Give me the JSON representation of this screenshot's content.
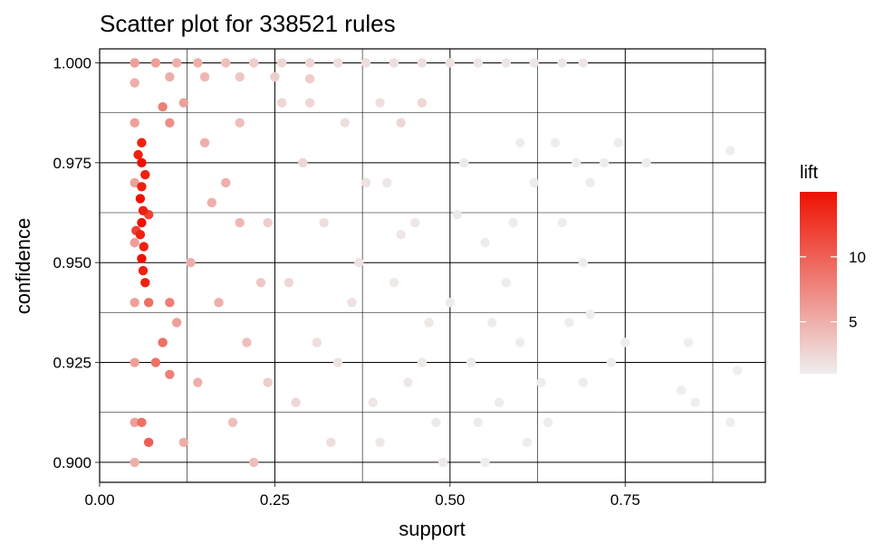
{
  "chart_data": {
    "type": "scatter",
    "title": "Scatter plot for 338521 rules",
    "xlabel": "support",
    "ylabel": "confidence",
    "xlim": [
      0.0,
      0.95
    ],
    "ylim": [
      0.895,
      1.0035
    ],
    "x_ticks": [
      {
        "value": 0.0,
        "label": "0.00"
      },
      {
        "value": 0.25,
        "label": "0.25"
      },
      {
        "value": 0.5,
        "label": "0.50"
      },
      {
        "value": 0.75,
        "label": "0.75"
      }
    ],
    "y_ticks": [
      {
        "value": 0.9,
        "label": "0.900"
      },
      {
        "value": 0.925,
        "label": "0.925"
      },
      {
        "value": 0.95,
        "label": "0.950"
      },
      {
        "value": 0.975,
        "label": "0.975"
      },
      {
        "value": 1.0,
        "label": "1.000"
      }
    ],
    "grid": true,
    "color_by": "lift",
    "legend": {
      "title": "lift",
      "placement": "right",
      "low_color": "#eeeeee",
      "high_color": "#ee1100",
      "range": [
        1,
        15
      ],
      "ticks": [
        {
          "value": 5,
          "label": "5"
        },
        {
          "value": 10,
          "label": "10"
        }
      ]
    },
    "series": [
      {
        "points": [
          [
            0.05,
            1.0,
            6
          ],
          [
            0.08,
            1.0,
            6
          ],
          [
            0.11,
            1.0,
            5
          ],
          [
            0.14,
            1.0,
            5
          ],
          [
            0.18,
            1.0,
            4
          ],
          [
            0.22,
            1.0,
            3
          ],
          [
            0.26,
            1.0,
            2.5
          ],
          [
            0.3,
            1.0,
            2.5
          ],
          [
            0.34,
            1.0,
            2
          ],
          [
            0.38,
            1.0,
            2
          ],
          [
            0.42,
            1.0,
            2
          ],
          [
            0.46,
            1.0,
            2
          ],
          [
            0.5,
            1.0,
            1.8
          ],
          [
            0.54,
            1.0,
            1.6
          ],
          [
            0.58,
            1.0,
            1.5
          ],
          [
            0.62,
            1.0,
            1.5
          ],
          [
            0.66,
            1.0,
            1.5
          ],
          [
            0.69,
            1.0,
            1.5
          ],
          [
            0.1,
            0.9965,
            5
          ],
          [
            0.15,
            0.9965,
            4.5
          ],
          [
            0.2,
            0.9965,
            3.5
          ],
          [
            0.25,
            0.9965,
            3
          ],
          [
            0.3,
            0.996,
            3
          ],
          [
            0.06,
            0.98,
            14
          ],
          [
            0.055,
            0.977,
            14
          ],
          [
            0.06,
            0.975,
            15
          ],
          [
            0.065,
            0.972,
            14
          ],
          [
            0.06,
            0.969,
            14
          ],
          [
            0.058,
            0.966,
            15
          ],
          [
            0.062,
            0.963,
            14
          ],
          [
            0.06,
            0.96,
            15
          ],
          [
            0.058,
            0.957,
            14
          ],
          [
            0.063,
            0.954,
            14
          ],
          [
            0.06,
            0.951,
            15
          ],
          [
            0.062,
            0.948,
            14
          ],
          [
            0.065,
            0.945,
            14
          ],
          [
            0.07,
            0.962,
            12
          ],
          [
            0.052,
            0.958,
            12
          ],
          [
            0.09,
            0.989,
            8
          ],
          [
            0.1,
            0.985,
            7
          ],
          [
            0.07,
            0.94,
            9
          ],
          [
            0.1,
            0.94,
            8
          ],
          [
            0.08,
            0.925,
            9
          ],
          [
            0.09,
            0.93,
            9
          ],
          [
            0.06,
            0.91,
            9
          ],
          [
            0.07,
            0.905,
            10
          ],
          [
            0.1,
            0.922,
            8
          ],
          [
            0.05,
            0.995,
            5
          ],
          [
            0.05,
            0.985,
            6
          ],
          [
            0.05,
            0.97,
            6
          ],
          [
            0.05,
            0.955,
            6
          ],
          [
            0.05,
            0.94,
            6
          ],
          [
            0.05,
            0.925,
            6
          ],
          [
            0.05,
            0.91,
            6
          ],
          [
            0.05,
            0.9,
            5
          ],
          [
            0.12,
            0.99,
            6
          ],
          [
            0.15,
            0.98,
            5
          ],
          [
            0.18,
            0.97,
            5
          ],
          [
            0.2,
            0.96,
            4.5
          ],
          [
            0.13,
            0.95,
            5
          ],
          [
            0.17,
            0.94,
            5
          ],
          [
            0.21,
            0.93,
            4
          ],
          [
            0.14,
            0.92,
            5
          ],
          [
            0.19,
            0.91,
            4
          ],
          [
            0.22,
            0.9,
            4
          ],
          [
            0.12,
            0.905,
            5
          ],
          [
            0.16,
            0.965,
            5
          ],
          [
            0.2,
            0.985,
            4
          ],
          [
            0.23,
            0.945,
            3.5
          ],
          [
            0.11,
            0.935,
            6
          ],
          [
            0.26,
            0.99,
            2.5
          ],
          [
            0.29,
            0.975,
            2.5
          ],
          [
            0.32,
            0.96,
            2
          ],
          [
            0.27,
            0.945,
            2.5
          ],
          [
            0.31,
            0.93,
            2
          ],
          [
            0.28,
            0.915,
            2.5
          ],
          [
            0.33,
            0.905,
            2
          ],
          [
            0.35,
            0.985,
            2
          ],
          [
            0.37,
            0.95,
            1.8
          ],
          [
            0.34,
            0.925,
            1.8
          ],
          [
            0.4,
            0.99,
            2
          ],
          [
            0.43,
            0.985,
            2.5
          ],
          [
            0.46,
            0.99,
            2.5
          ],
          [
            0.41,
            0.97,
            1.5
          ],
          [
            0.45,
            0.96,
            1.5
          ],
          [
            0.42,
            0.945,
            1.4
          ],
          [
            0.47,
            0.935,
            1.4
          ],
          [
            0.44,
            0.92,
            1.4
          ],
          [
            0.48,
            0.91,
            1.3
          ],
          [
            0.4,
            0.905,
            1.4
          ],
          [
            0.52,
            0.975,
            1.3
          ],
          [
            0.55,
            0.955,
            1.2
          ],
          [
            0.5,
            0.94,
            1.2
          ],
          [
            0.53,
            0.925,
            1.2
          ],
          [
            0.57,
            0.915,
            1.2
          ],
          [
            0.49,
            0.9,
            1.3
          ],
          [
            0.58,
            0.945,
            1.1
          ],
          [
            0.6,
            0.93,
            1.1
          ],
          [
            0.62,
            0.97,
            1.1
          ],
          [
            0.63,
            0.92,
            1.1
          ],
          [
            0.6,
            0.98,
            1.1
          ],
          [
            0.65,
            0.98,
            1.1
          ],
          [
            0.68,
            0.975,
            1.1
          ],
          [
            0.7,
            0.97,
            1.1
          ],
          [
            0.72,
            0.975,
            1.1
          ],
          [
            0.74,
            0.98,
            1.1
          ],
          [
            0.78,
            0.975,
            1.1
          ],
          [
            0.66,
            0.96,
            1.1
          ],
          [
            0.69,
            0.95,
            1.1
          ],
          [
            0.67,
            0.935,
            1.1
          ],
          [
            0.7,
            0.937,
            1.1
          ],
          [
            0.73,
            0.925,
            1.1
          ],
          [
            0.75,
            0.93,
            1.1
          ],
          [
            0.84,
            0.93,
            1
          ],
          [
            0.83,
            0.918,
            1
          ],
          [
            0.85,
            0.915,
            1
          ],
          [
            0.9,
            0.978,
            1
          ],
          [
            0.91,
            0.923,
            1
          ],
          [
            0.9,
            0.91,
            1
          ],
          [
            0.69,
            0.92,
            1.1
          ],
          [
            0.64,
            0.91,
            1.1
          ],
          [
            0.61,
            0.905,
            1.1
          ],
          [
            0.55,
            0.9,
            1.1
          ],
          [
            0.59,
            0.96,
            1.1
          ],
          [
            0.56,
            0.935,
            1.2
          ],
          [
            0.38,
            0.97,
            1.8
          ],
          [
            0.36,
            0.94,
            1.8
          ],
          [
            0.39,
            0.915,
            1.6
          ],
          [
            0.24,
            0.96,
            3
          ],
          [
            0.24,
            0.92,
            3
          ],
          [
            0.43,
            0.957,
            1.5
          ],
          [
            0.51,
            0.962,
            1.3
          ],
          [
            0.54,
            0.91,
            1.2
          ],
          [
            0.46,
            0.925,
            1.4
          ],
          [
            0.3,
            0.99,
            2.5
          ]
        ]
      }
    ]
  }
}
